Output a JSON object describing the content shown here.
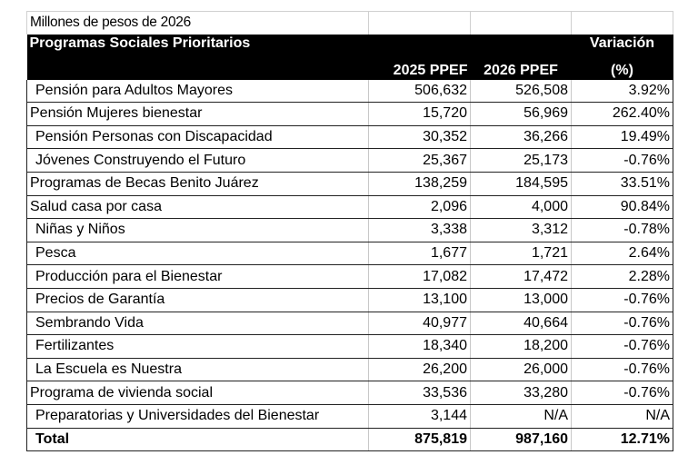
{
  "subtitle": "Millones de pesos de 2026",
  "header": {
    "program": "Programas Sociales Prioritarios",
    "col2025": "2025 PPEF",
    "col2026": "2026 PPEF",
    "variation_line1": "Variación",
    "variation_line2": "(%)"
  },
  "rows": [
    {
      "name": "Pensión para Adultos Mayores",
      "v2025": "506,632",
      "v2026": "526,508",
      "var": "3.92%",
      "indent": true
    },
    {
      "name": "Pensión Mujeres bienestar",
      "v2025": "15,720",
      "v2026": "56,969",
      "var": "262.40%",
      "indent": false
    },
    {
      "name": "Pensión Personas con Discapacidad",
      "v2025": "30,352",
      "v2026": "36,266",
      "var": "19.49%",
      "indent": true
    },
    {
      "name": "Jóvenes Construyendo el Futuro",
      "v2025": "25,367",
      "v2026": "25,173",
      "var": "-0.76%",
      "indent": true
    },
    {
      "name": "Programas de Becas Benito Juárez",
      "v2025": "138,259",
      "v2026": "184,595",
      "var": "33.51%",
      "indent": false
    },
    {
      "name": "Salud casa por casa",
      "v2025": "2,096",
      "v2026": "4,000",
      "var": "90.84%",
      "indent": false
    },
    {
      "name": "Niñas y Niños",
      "v2025": "3,338",
      "v2026": "3,312",
      "var": "-0.78%",
      "indent": true
    },
    {
      "name": "Pesca",
      "v2025": "1,677",
      "v2026": "1,721",
      "var": "2.64%",
      "indent": true
    },
    {
      "name": "Producción para el Bienestar",
      "v2025": "17,082",
      "v2026": "17,472",
      "var": "2.28%",
      "indent": true
    },
    {
      "name": "Precios de Garantía",
      "v2025": "13,100",
      "v2026": "13,000",
      "var": "-0.76%",
      "indent": true
    },
    {
      "name": "Sembrando Vida",
      "v2025": "40,977",
      "v2026": "40,664",
      "var": "-0.76%",
      "indent": true
    },
    {
      "name": "Fertilizantes",
      "v2025": "18,340",
      "v2026": "18,200",
      "var": "-0.76%",
      "indent": true
    },
    {
      "name": "La Escuela es Nuestra",
      "v2025": "26,200",
      "v2026": "26,000",
      "var": "-0.76%",
      "indent": true
    },
    {
      "name": "Programa de vivienda social",
      "v2025": "33,536",
      "v2026": "33,280",
      "var": "-0.76%",
      "indent": false
    },
    {
      "name": "Preparatorias y Universidades del Bienestar",
      "v2025": "3,144",
      "v2026": "N/A",
      "var": "N/A",
      "indent": true
    }
  ],
  "total": {
    "name": "Total",
    "v2025": "875,819",
    "v2026": "987,160",
    "var": "12.71%"
  }
}
